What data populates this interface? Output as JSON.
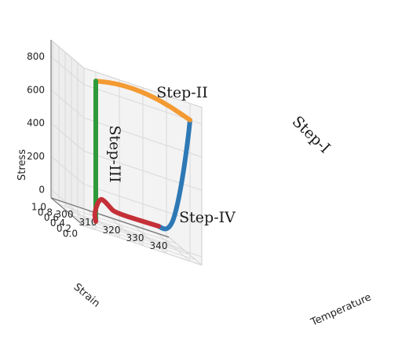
{
  "chart_data": {
    "type": "line3d",
    "axes": {
      "x": {
        "label": "Temperature",
        "ticks": [
          300,
          310,
          320,
          330,
          340
        ],
        "range": [
          295,
          345
        ]
      },
      "y": {
        "label": "Strain",
        "ticks": [
          0.0,
          0.2,
          0.4,
          0.6,
          0.8,
          1.0
        ],
        "range": [
          0,
          1.05
        ]
      },
      "z": {
        "label": "Stress",
        "ticks": [
          0,
          200,
          400,
          600,
          800
        ],
        "range": [
          -50,
          900
        ]
      }
    },
    "grid": true,
    "series": [
      {
        "name": "Step-I",
        "color": "#2e79b5",
        "points": [
          [
            340,
            0,
            800
          ],
          [
            340,
            0.05,
            700
          ],
          [
            340,
            0.15,
            540
          ],
          [
            340,
            0.25,
            400
          ],
          [
            340,
            0.35,
            280
          ],
          [
            340,
            0.45,
            180
          ],
          [
            340,
            0.55,
            100
          ],
          [
            340,
            0.68,
            40
          ],
          [
            340,
            0.82,
            10
          ],
          [
            340,
            1.0,
            0
          ]
        ]
      },
      {
        "name": "Step-II",
        "color": "#f39a32",
        "points": [
          [
            340,
            0,
            800
          ],
          [
            332,
            0,
            840
          ],
          [
            324,
            0,
            866
          ],
          [
            316,
            0,
            876
          ],
          [
            308,
            0,
            870
          ],
          [
            300,
            0,
            846
          ]
        ]
      },
      {
        "name": "Step-III",
        "color": "#2f9a3a",
        "points": [
          [
            300,
            0,
            846
          ],
          [
            300,
            0,
            620
          ],
          [
            300,
            0,
            420
          ],
          [
            300,
            0,
            220
          ],
          [
            300,
            0,
            0
          ]
        ]
      },
      {
        "name": "Step-IV",
        "color": "#c53038",
        "points": [
          [
            300,
            0,
            0
          ],
          [
            302,
            0.2,
            30
          ],
          [
            307,
            0.4,
            110
          ],
          [
            312,
            0.6,
            80
          ],
          [
            316,
            0.75,
            40
          ],
          [
            320,
            0.88,
            5
          ],
          [
            340,
            1.0,
            0
          ]
        ]
      }
    ],
    "annotations": [
      "Step-I",
      "Step-II",
      "Step-III",
      "Step-IV"
    ]
  }
}
